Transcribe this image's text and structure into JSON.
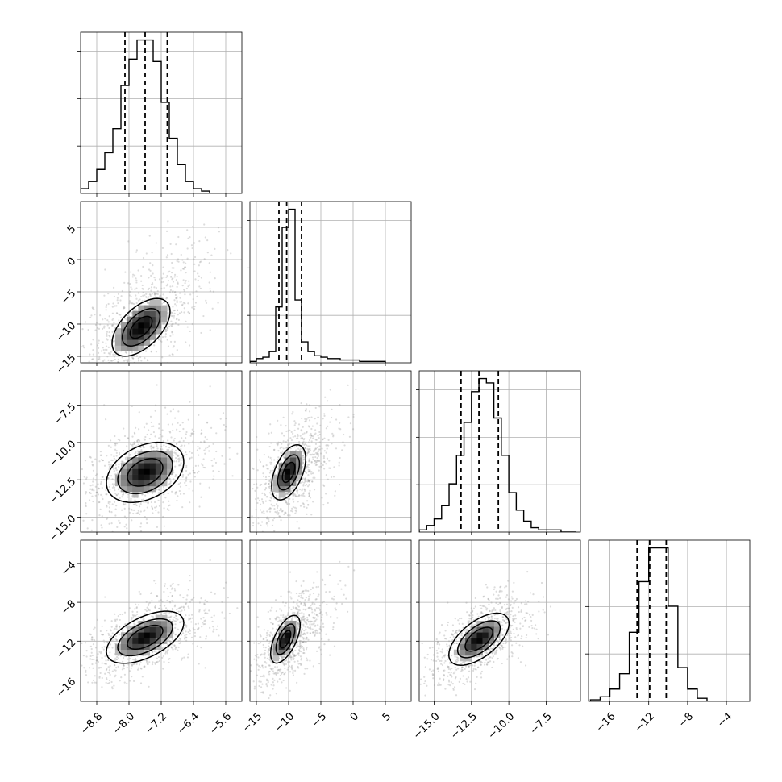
{
  "chart_data": {
    "type": "corner",
    "grid": true,
    "colors": {
      "line": "#000000",
      "grid": "#b0b0b0",
      "scatter": "#9a9a9a",
      "density_dark": "#000000",
      "density_light": "#ffffff"
    },
    "params": [
      {
        "range": [
          -9.2,
          -5.2
        ],
        "ticks": [
          -8.8,
          -8.0,
          -7.2,
          -6.4,
          -5.6
        ],
        "tick_labels": [
          "−8.8",
          "−8.0",
          "−7.2",
          "−6.4",
          "−5.6"
        ],
        "quantiles": [
          -8.1,
          -7.6,
          -7.05
        ]
      },
      {
        "range": [
          -16,
          9
        ],
        "ticks": [
          -15,
          -10,
          -5,
          0,
          5
        ],
        "tick_labels": [
          "−15",
          "−10",
          "−5",
          "0",
          "5"
        ],
        "quantiles": [
          -11.5,
          -10.3,
          -8.0
        ]
      },
      {
        "range": [
          -16,
          -5.2
        ],
        "ticks": [
          -15.0,
          -12.5,
          -10.0,
          -7.5
        ],
        "tick_labels": [
          "−15.0",
          "−12.5",
          "−10.0",
          "−7.5"
        ],
        "quantiles": [
          -13.2,
          -12.0,
          -10.7
        ]
      },
      {
        "range": [
          -18.2,
          -1.6
        ],
        "ticks": [
          -16,
          -12,
          -8,
          -4
        ],
        "tick_labels": [
          "−16",
          "−12",
          "−8",
          "−4"
        ],
        "quantiles": [
          -13.2,
          -11.9,
          -10.2
        ]
      }
    ],
    "histograms": [
      {
        "param": 0,
        "bin_edges": [
          -9.2,
          -9.0,
          -8.8,
          -8.6,
          -8.4,
          -8.2,
          -8.0,
          -7.8,
          -7.6,
          -7.4,
          -7.2,
          -7.0,
          -6.8,
          -6.6,
          -6.4,
          -6.2,
          -6.0,
          -5.8
        ],
        "counts": [
          2,
          5,
          10,
          17,
          27,
          45,
          56,
          64,
          64,
          55,
          38,
          23,
          12,
          5,
          2,
          1,
          0
        ]
      },
      {
        "param": 1,
        "bin_edges": [
          -16,
          -15,
          -14,
          -13,
          -12,
          -11,
          -10,
          -9,
          -8,
          -7,
          -6,
          -5,
          -4,
          -3,
          -2,
          -1,
          0,
          1,
          2,
          3,
          4,
          5
        ],
        "counts": [
          1,
          3,
          4,
          8,
          40,
          97,
          110,
          45,
          15,
          8,
          5,
          4,
          3,
          3,
          2,
          2,
          2,
          1,
          1,
          1,
          1
        ]
      },
      {
        "param": 2,
        "bin_edges": [
          -16.0,
          -15.5,
          -15.0,
          -14.5,
          -14.0,
          -13.5,
          -13.0,
          -12.5,
          -12.0,
          -11.5,
          -11.0,
          -10.5,
          -10.0,
          -9.5,
          -9.0,
          -8.5,
          -8.0,
          -7.5,
          -7.0,
          -6.5,
          -6.0,
          -5.5
        ],
        "counts": [
          1,
          3,
          6,
          12,
          22,
          35,
          50,
          64,
          70,
          68,
          52,
          35,
          18,
          10,
          5,
          2,
          1,
          1,
          1,
          0,
          0
        ]
      },
      {
        "param": 3,
        "bin_edges": [
          -18,
          -17,
          -16,
          -15,
          -14,
          -13,
          -12,
          -11,
          -10,
          -9,
          -8,
          -7,
          -6
        ],
        "counts": [
          1,
          3,
          8,
          18,
          45,
          78,
          100,
          100,
          62,
          22,
          8,
          2
        ]
      }
    ],
    "pairs": [
      {
        "x_param": 0,
        "y_param": 1,
        "center": [
          -7.7,
          -10.5
        ],
        "sigma": [
          0.45,
          2.8
        ],
        "rho": 0.55,
        "tail": [
          0.6,
          6.0
        ],
        "contour_scale": [
          0.38,
          0.65,
          1.0
        ]
      },
      {
        "x_param": 0,
        "y_param": 2,
        "center": [
          -7.6,
          -12.0
        ],
        "sigma": [
          0.5,
          1.05
        ],
        "rho": 0.35,
        "tail": [
          0.0,
          0.0
        ],
        "contour_scale": [
          0.55,
          0.85,
          1.2
        ]
      },
      {
        "x_param": 1,
        "y_param": 2,
        "center": [
          -10.0,
          -12.0
        ],
        "sigma": [
          1.5,
          1.05
        ],
        "rho": 0.5,
        "tail": [
          6.0,
          0.8
        ],
        "contour_scale": [
          0.4,
          0.7,
          1.1
        ]
      },
      {
        "x_param": 0,
        "y_param": 3,
        "center": [
          -7.6,
          -11.6
        ],
        "sigma": [
          0.5,
          1.4
        ],
        "rho": 0.55,
        "tail": [
          0.0,
          0.0
        ],
        "contour_scale": [
          0.55,
          0.85,
          1.2
        ]
      },
      {
        "x_param": 1,
        "y_param": 3,
        "center": [
          -10.5,
          -11.8
        ],
        "sigma": [
          1.3,
          1.4
        ],
        "rho": 0.6,
        "tail": [
          6.0,
          1.0
        ],
        "contour_scale": [
          0.4,
          0.7,
          1.1
        ]
      },
      {
        "x_param": 2,
        "y_param": 3,
        "center": [
          -12.0,
          -11.8
        ],
        "sigma": [
          1.05,
          1.4
        ],
        "rho": 0.6,
        "tail": [
          0.0,
          0.0
        ],
        "contour_scale": [
          0.55,
          0.85,
          1.2
        ]
      }
    ]
  }
}
